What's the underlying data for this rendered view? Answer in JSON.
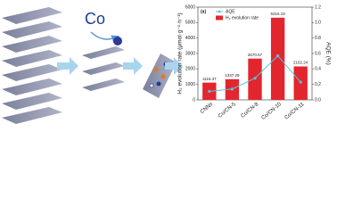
{
  "schematic": {
    "label": "Co"
  },
  "chart_data": {
    "type": "bar",
    "panel_label": "(a)",
    "y_label": "H₂ evolution rate (μmol·g⁻¹·h⁻¹)",
    "y2_label": "AQE (%)",
    "categories": [
      "CNNs",
      "Co/CN-5",
      "Co/CN-8",
      "Co/CN-10",
      "Co/CN-11"
    ],
    "series": [
      {
        "name": "H₂ evolution rate",
        "type": "bar",
        "color": "#e3262d",
        "values": [
          1116.37,
          1337.29,
          2670.57,
          5316.19,
          2162.24
        ]
      },
      {
        "name": "AQE",
        "type": "line",
        "axis": "y2",
        "color": "#56c2e6",
        "values": [
          0.11,
          0.14,
          0.28,
          0.57,
          0.23
        ]
      }
    ],
    "ylim": [
      0,
      6000
    ],
    "yticks": [
      0,
      1000,
      2000,
      3000,
      4000,
      5000,
      6000
    ],
    "y2lim": [
      0,
      1.2
    ],
    "y2ticks": [
      {
        "value": 0,
        "label": "0.0"
      },
      {
        "value": 0.2,
        "label": "0.2"
      },
      {
        "value": 0.4,
        "label": "0.4"
      },
      {
        "value": 0.6,
        "label": "0.6"
      },
      {
        "value": 0.8,
        "label": "0.8"
      },
      {
        "value": 1.0,
        "label": "1.0"
      },
      {
        "value": 1.2,
        "label": "1.2"
      }
    ],
    "legend": "upper-left"
  }
}
